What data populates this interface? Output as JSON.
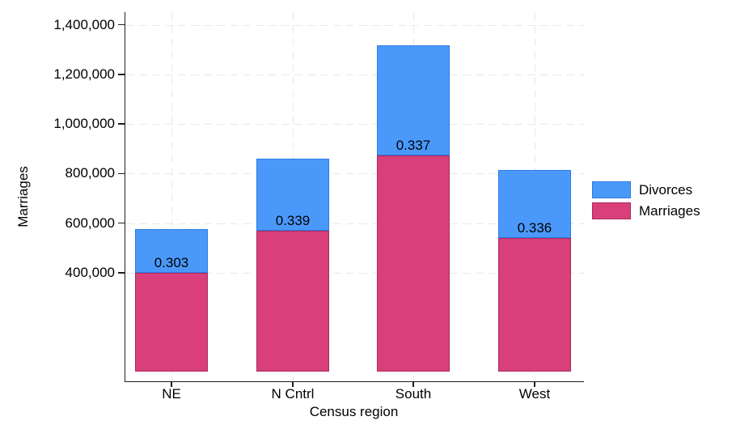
{
  "axes": {
    "y_title": "Marriages",
    "x_title": "Census region"
  },
  "legend": {
    "items": [
      {
        "label": "Divorces",
        "fill": "#4a99fa",
        "border": "#2b7ce5"
      },
      {
        "label": "Marriages",
        "fill": "#d9407a",
        "border": "#aa2a61"
      }
    ]
  },
  "chart_data": {
    "type": "bar",
    "stacked": true,
    "title": "",
    "xlabel": "Census region",
    "ylabel": "Marriages",
    "categories": [
      "NE",
      "N Cntrl",
      "South",
      "West"
    ],
    "series": [
      {
        "name": "Marriages",
        "color": "#d9407a",
        "border_color": "#aa2a61",
        "values": [
          401000,
          568000,
          872000,
          540000
        ]
      },
      {
        "name": "Divorces",
        "color": "#4a99fa",
        "border_color": "#2b7ce5",
        "values": [
          174000,
          291000,
          446000,
          273000
        ]
      }
    ],
    "bar_labels": [
      "0.303",
      "0.339",
      "0.337",
      "0.336"
    ],
    "yticks": [
      400000,
      600000,
      800000,
      1000000,
      1200000,
      1400000
    ],
    "ytick_labels": [
      "400,000",
      "600,000",
      "800,000",
      "1,000,000",
      "1,200,000",
      "1,400,000"
    ],
    "ylim": [
      0,
      1450000
    ],
    "grid": "dashed-both-directions",
    "legend_position": "right",
    "legend_labels": [
      "Divorces",
      "Marriages"
    ]
  }
}
